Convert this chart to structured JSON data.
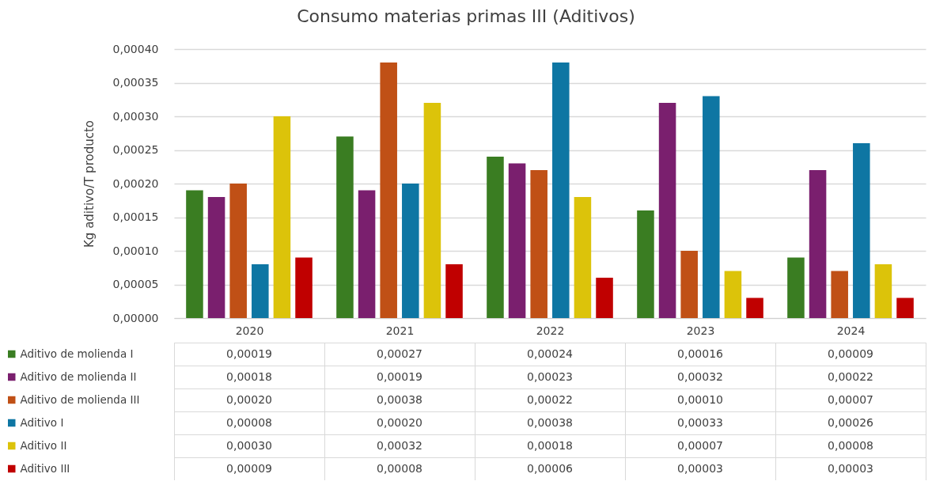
{
  "chart_data": {
    "type": "bar",
    "title": "Consumo materias primas III (Aditivos)",
    "ylabel": "Kg aditivo/T producto",
    "categories": [
      "2020",
      "2021",
      "2022",
      "2023",
      "2024"
    ],
    "series": [
      {
        "name": "Aditivo de molienda I",
        "color": "#3a7d22",
        "values": [
          0.00019,
          0.00027,
          0.00024,
          0.00016,
          9e-05
        ],
        "value_labels": [
          "0,00019",
          "0,00027",
          "0,00024",
          "0,00016",
          "0,00009"
        ]
      },
      {
        "name": "Aditivo de molienda II",
        "color": "#7a1f6e",
        "values": [
          0.00018,
          0.00019,
          0.00023,
          0.00032,
          0.00022
        ],
        "value_labels": [
          "0,00018",
          "0,00019",
          "0,00023",
          "0,00032",
          "0,00022"
        ]
      },
      {
        "name": "Aditivo de molienda III",
        "color": "#c05016",
        "values": [
          0.0002,
          0.00038,
          0.00022,
          0.0001,
          7e-05
        ],
        "value_labels": [
          "0,00020",
          "0,00038",
          "0,00022",
          "0,00010",
          "0,00007"
        ]
      },
      {
        "name": "Aditivo I",
        "color": "#0e76a3",
        "values": [
          8e-05,
          0.0002,
          0.00038,
          0.00033,
          0.00026
        ],
        "value_labels": [
          "0,00008",
          "0,00020",
          "0,00038",
          "0,00033",
          "0,00026"
        ]
      },
      {
        "name": "Aditivo II",
        "color": "#dcc30a",
        "values": [
          0.0003,
          0.00032,
          0.00018,
          7e-05,
          8e-05
        ],
        "value_labels": [
          "0,00030",
          "0,00032",
          "0,00018",
          "0,00007",
          "0,00008"
        ]
      },
      {
        "name": "Aditivo III",
        "color": "#c00000",
        "values": [
          9e-05,
          8e-05,
          6e-05,
          3e-05,
          3e-05
        ],
        "value_labels": [
          "0,00009",
          "0,00008",
          "0,00006",
          "0,00003",
          "0,00003"
        ]
      }
    ],
    "ylim": [
      0,
      0.0004
    ],
    "yticks": [
      {
        "value": 0,
        "label": "0,00000"
      },
      {
        "value": 5e-05,
        "label": "0,00005"
      },
      {
        "value": 0.0001,
        "label": "0,00010"
      },
      {
        "value": 0.00015,
        "label": "0,00015"
      },
      {
        "value": 0.0002,
        "label": "0,00020"
      },
      {
        "value": 0.00025,
        "label": "0,00025"
      },
      {
        "value": 0.0003,
        "label": "0,00030"
      },
      {
        "value": 0.00035,
        "label": "0,00035"
      },
      {
        "value": 0.0004,
        "label": "0,00040"
      }
    ],
    "grid": "y",
    "legend": "bottom left"
  }
}
